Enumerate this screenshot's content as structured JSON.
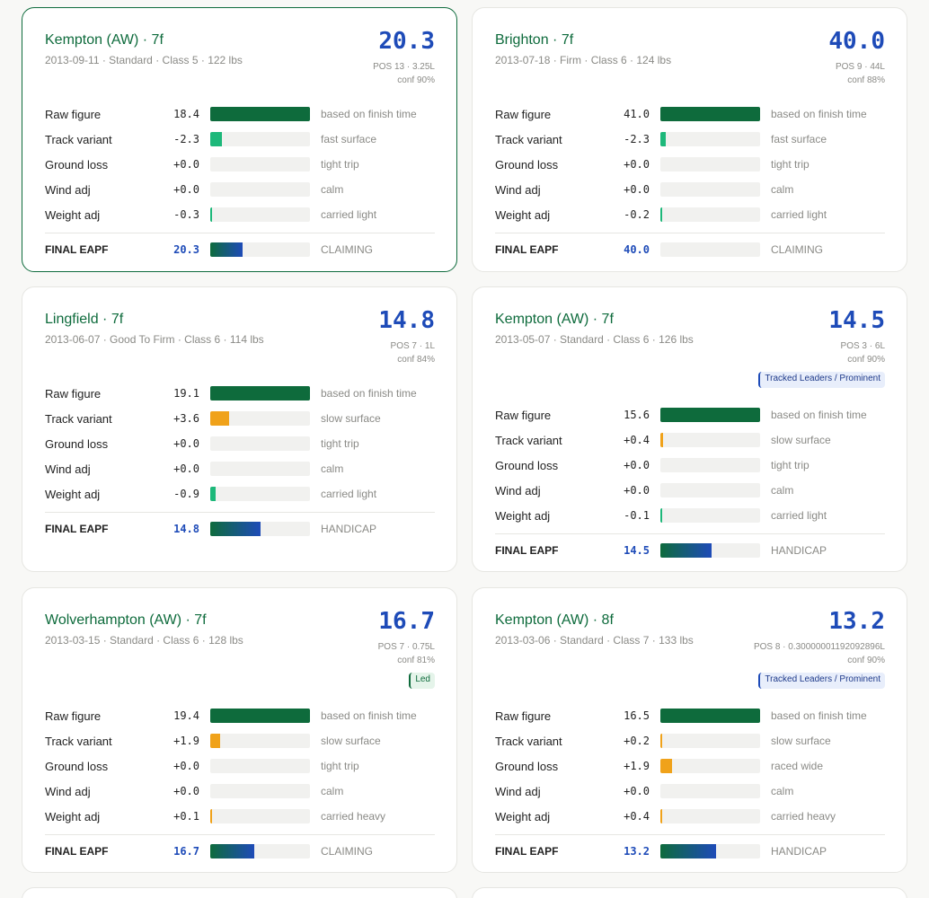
{
  "cards": [
    {
      "title": "Kempton (AW) · 7f",
      "subtitle": "2013-09-11 · Standard · Class 5 · 122 lbs",
      "score": "20.3",
      "pos": "POS 13 · 3.25L",
      "conf": "conf 90%",
      "badge": "",
      "rows": [
        {
          "label": "Raw figure",
          "value": "18.4",
          "note": "based on finish time",
          "fill": 1.0,
          "color": "green"
        },
        {
          "label": "Track variant",
          "value": "-2.3",
          "note": "fast surface",
          "fill": 0.12,
          "color": "teal"
        },
        {
          "label": "Ground loss",
          "value": "+0.0",
          "note": "tight trip",
          "fill": 0,
          "color": "green"
        },
        {
          "label": "Wind adj",
          "value": "+0.0",
          "note": "calm",
          "fill": 0,
          "color": "green"
        },
        {
          "label": "Weight adj",
          "value": "-0.3",
          "note": "carried light",
          "fill": 0.02,
          "color": "teal"
        }
      ],
      "final": {
        "label": "FINAL EAPF",
        "value": "20.3",
        "note": "CLAIMING",
        "fill": 0.32
      }
    },
    {
      "title": "Brighton · 7f",
      "subtitle": "2013-07-18 · Firm · Class 6 · 124 lbs",
      "score": "40.0",
      "pos": "POS 9 · 44L",
      "conf": "conf 88%",
      "badge": "",
      "rows": [
        {
          "label": "Raw figure",
          "value": "41.0",
          "note": "based on finish time",
          "fill": 1.0,
          "color": "green"
        },
        {
          "label": "Track variant",
          "value": "-2.3",
          "note": "fast surface",
          "fill": 0.05,
          "color": "teal"
        },
        {
          "label": "Ground loss",
          "value": "+0.0",
          "note": "tight trip",
          "fill": 0,
          "color": "green"
        },
        {
          "label": "Wind adj",
          "value": "+0.0",
          "note": "calm",
          "fill": 0,
          "color": "green"
        },
        {
          "label": "Weight adj",
          "value": "-0.2",
          "note": "carried light",
          "fill": 0.01,
          "color": "teal"
        }
      ],
      "final": {
        "label": "FINAL EAPF",
        "value": "40.0",
        "note": "CLAIMING",
        "fill": 0
      }
    },
    {
      "title": "Lingfield · 7f",
      "subtitle": "2013-06-07 · Good To Firm · Class 6 · 114 lbs",
      "score": "14.8",
      "pos": "POS 7 · 1L",
      "conf": "conf 84%",
      "badge": "",
      "rows": [
        {
          "label": "Raw figure",
          "value": "19.1",
          "note": "based on finish time",
          "fill": 1.0,
          "color": "green"
        },
        {
          "label": "Track variant",
          "value": "+3.6",
          "note": "slow surface",
          "fill": 0.19,
          "color": "orange"
        },
        {
          "label": "Ground loss",
          "value": "+0.0",
          "note": "tight trip",
          "fill": 0,
          "color": "green"
        },
        {
          "label": "Wind adj",
          "value": "+0.0",
          "note": "calm",
          "fill": 0,
          "color": "green"
        },
        {
          "label": "Weight adj",
          "value": "-0.9",
          "note": "carried light",
          "fill": 0.05,
          "color": "teal"
        }
      ],
      "final": {
        "label": "FINAL EAPF",
        "value": "14.8",
        "note": "HANDICAP",
        "fill": 0.5
      }
    },
    {
      "title": "Kempton (AW) · 7f",
      "subtitle": "2013-05-07 · Standard · Class 6 · 126 lbs",
      "score": "14.5",
      "pos": "POS 3 · 6L",
      "conf": "conf 90%",
      "badge": "Tracked Leaders / Prominent",
      "badge_color": "blue",
      "rows": [
        {
          "label": "Raw figure",
          "value": "15.6",
          "note": "based on finish time",
          "fill": 1.0,
          "color": "green"
        },
        {
          "label": "Track variant",
          "value": "+0.4",
          "note": "slow surface",
          "fill": 0.03,
          "color": "orange"
        },
        {
          "label": "Ground loss",
          "value": "+0.0",
          "note": "tight trip",
          "fill": 0,
          "color": "green"
        },
        {
          "label": "Wind adj",
          "value": "+0.0",
          "note": "calm",
          "fill": 0,
          "color": "green"
        },
        {
          "label": "Weight adj",
          "value": "-0.1",
          "note": "carried light",
          "fill": 0.01,
          "color": "teal"
        }
      ],
      "final": {
        "label": "FINAL EAPF",
        "value": "14.5",
        "note": "HANDICAP",
        "fill": 0.51
      }
    },
    {
      "title": "Wolverhampton (AW) · 7f",
      "subtitle": "2013-03-15 · Standard · Class 6 · 128 lbs",
      "score": "16.7",
      "pos": "POS 7 · 0.75L",
      "conf": "conf 81%",
      "badge": "Led",
      "badge_color": "green",
      "rows": [
        {
          "label": "Raw figure",
          "value": "19.4",
          "note": "based on finish time",
          "fill": 1.0,
          "color": "green"
        },
        {
          "label": "Track variant",
          "value": "+1.9",
          "note": "slow surface",
          "fill": 0.1,
          "color": "orange"
        },
        {
          "label": "Ground loss",
          "value": "+0.0",
          "note": "tight trip",
          "fill": 0,
          "color": "green"
        },
        {
          "label": "Wind adj",
          "value": "+0.0",
          "note": "calm",
          "fill": 0,
          "color": "green"
        },
        {
          "label": "Weight adj",
          "value": "+0.1",
          "note": "carried heavy",
          "fill": 0.01,
          "color": "orange"
        }
      ],
      "final": {
        "label": "FINAL EAPF",
        "value": "16.7",
        "note": "CLAIMING",
        "fill": 0.44
      }
    },
    {
      "title": "Kempton (AW) · 8f",
      "subtitle": "2013-03-06 · Standard · Class 7 · 133 lbs",
      "score": "13.2",
      "pos": "POS 8 · 0.30000001192092896L",
      "conf": "conf 90%",
      "badge": "Tracked Leaders / Prominent",
      "badge_color": "blue",
      "rows": [
        {
          "label": "Raw figure",
          "value": "16.5",
          "note": "based on finish time",
          "fill": 1.0,
          "color": "green"
        },
        {
          "label": "Track variant",
          "value": "+0.2",
          "note": "slow surface",
          "fill": 0.02,
          "color": "orange"
        },
        {
          "label": "Ground loss",
          "value": "+1.9",
          "note": "raced wide",
          "fill": 0.12,
          "color": "orange"
        },
        {
          "label": "Wind adj",
          "value": "+0.0",
          "note": "calm",
          "fill": 0,
          "color": "green"
        },
        {
          "label": "Weight adj",
          "value": "+0.4",
          "note": "carried heavy",
          "fill": 0.02,
          "color": "orange"
        }
      ],
      "final": {
        "label": "FINAL EAPF",
        "value": "13.2",
        "note": "HANDICAP",
        "fill": 0.56
      }
    }
  ]
}
